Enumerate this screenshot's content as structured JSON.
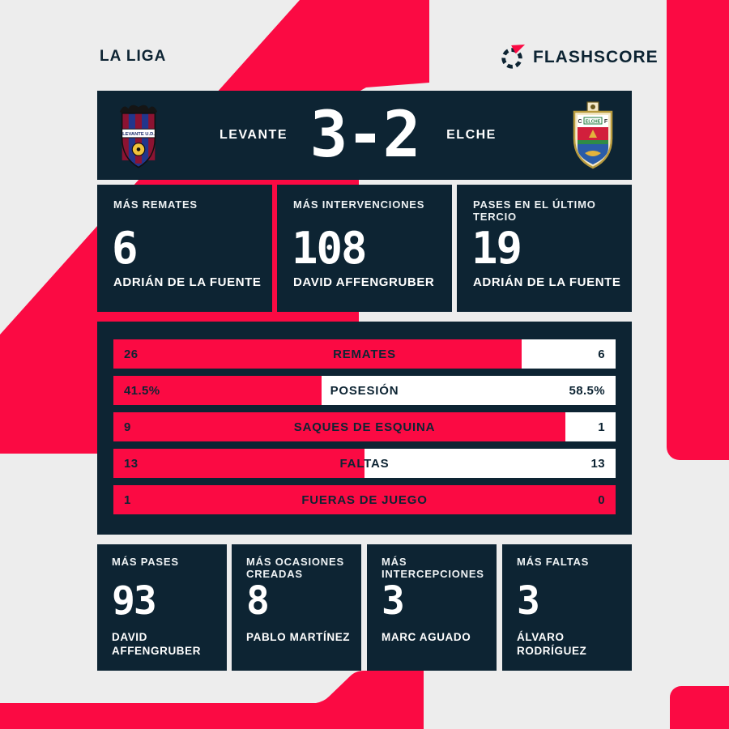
{
  "meta": {
    "league": "LA LIGA",
    "brand": "FLASHSCORE"
  },
  "colors": {
    "accent": "#fb0a43",
    "panel": "#0d2433",
    "background": "#ededed",
    "bar_bg": "#ffffff"
  },
  "scoreboard": {
    "home_name": "LEVANTE",
    "away_name": "ELCHE",
    "score": "3-2",
    "home_crest_text": "LEVANTE U.D.",
    "away_crest": {
      "left_letter": "C",
      "right_letter": "F",
      "banner": "ELCHE"
    }
  },
  "top_stats": [
    {
      "label": "MÁS REMATES",
      "value": "6",
      "player": "ADRIÁN DE LA FUENTE"
    },
    {
      "label": "MÁS INTERVENCIONES",
      "value": "108",
      "player": "DAVID AFFENGRUBER"
    },
    {
      "label": "PASES EN EL ÚLTIMO TERCIO",
      "value": "19",
      "player": "ADRIÁN DE LA FUENTE"
    }
  ],
  "stats_bars": [
    {
      "label": "REMATES",
      "home": "26",
      "away": "6",
      "home_pct": "81.25%"
    },
    {
      "label": "POSESIÓN",
      "home": "41.5%",
      "away": "58.5%",
      "home_pct": "41.5%"
    },
    {
      "label": "SAQUES DE ESQUINA",
      "home": "9",
      "away": "1",
      "home_pct": "90%"
    },
    {
      "label": "FALTAS",
      "home": "13",
      "away": "13",
      "home_pct": "50%"
    },
    {
      "label": "FUERAS DE JUEGO",
      "home": "1",
      "away": "0",
      "home_pct": "100%"
    }
  ],
  "bottom_stats": [
    {
      "label": "MÁS PASES",
      "value": "93",
      "player": "DAVID AFFENGRUBER"
    },
    {
      "label": "MÁS OCASIONES CREADAS",
      "value": "8",
      "player": "PABLO MARTÍNEZ"
    },
    {
      "label": "MÁS INTERCEPCIONES",
      "value": "3",
      "player": "MARC AGUADO"
    },
    {
      "label": "MÁS FALTAS",
      "value": "3",
      "player": "ÁLVARO RODRÍGUEZ"
    }
  ],
  "chart_data": {
    "type": "bar",
    "orientation": "horizontal",
    "title": "LEVANTE 3-2 ELCHE",
    "categories": [
      "REMATES",
      "POSESIÓN",
      "SAQUES DE ESQUINA",
      "FALTAS",
      "FUERAS DE JUEGO"
    ],
    "series": [
      {
        "name": "LEVANTE",
        "values": [
          26,
          41.5,
          9,
          13,
          1
        ]
      },
      {
        "name": "ELCHE",
        "values": [
          6,
          58.5,
          1,
          13,
          0
        ]
      }
    ],
    "legend_position": "none",
    "value_labels": "both-ends"
  }
}
